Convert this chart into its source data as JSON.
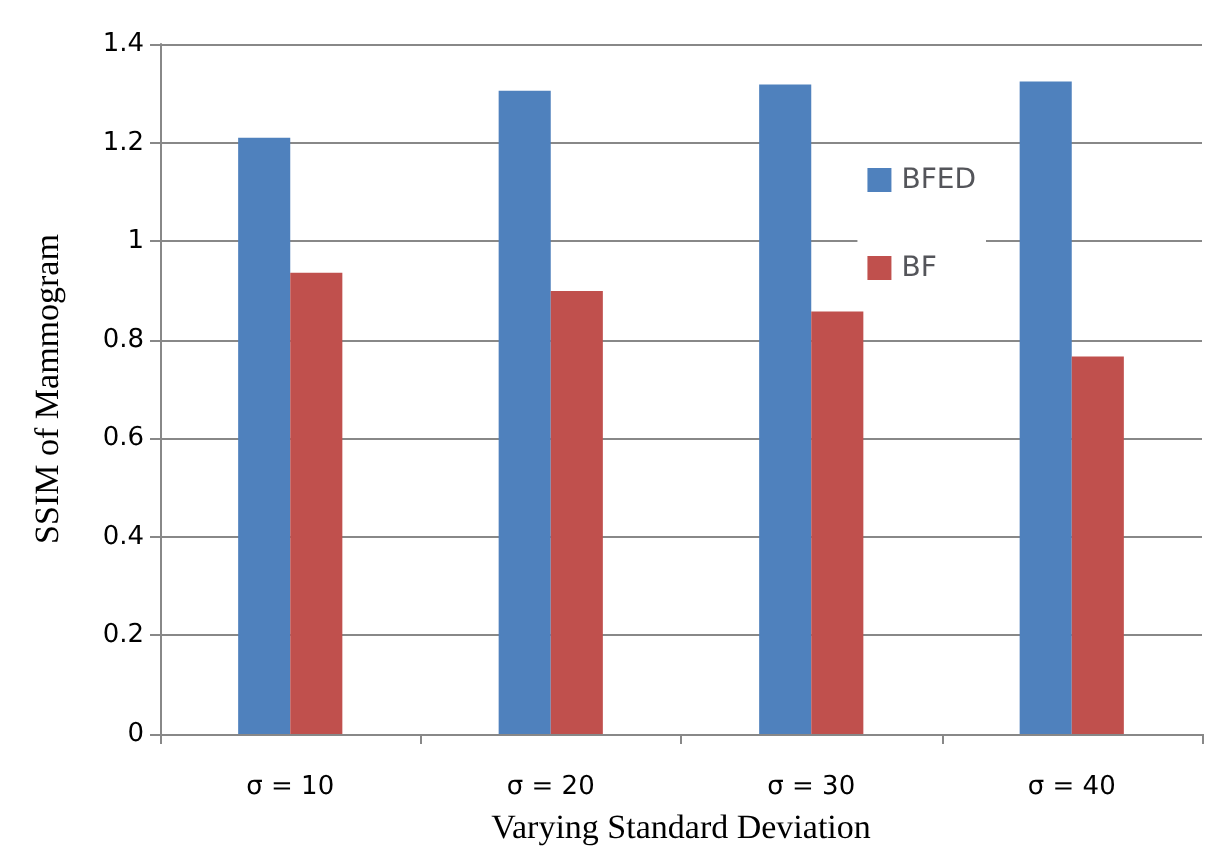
{
  "chart_data": {
    "type": "bar",
    "xlabel": "Varying Standard Deviation",
    "ylabel": "SSIM of Mammogram",
    "categories": [
      "σ = 10",
      "σ = 20",
      "σ = 30",
      "σ = 40"
    ],
    "series": [
      {
        "name": "BFED",
        "color": "#4f81bd",
        "values": [
          1.21,
          1.305,
          1.318,
          1.324
        ]
      },
      {
        "name": "BF",
        "color": "#c0504d",
        "values": [
          0.936,
          0.899,
          0.857,
          0.766
        ]
      }
    ],
    "ylim": [
      0,
      1.4
    ],
    "yticks": [
      0,
      0.2,
      0.4,
      0.6,
      0.8,
      1,
      1.2,
      1.4
    ],
    "grid": "y",
    "legend": "right"
  }
}
